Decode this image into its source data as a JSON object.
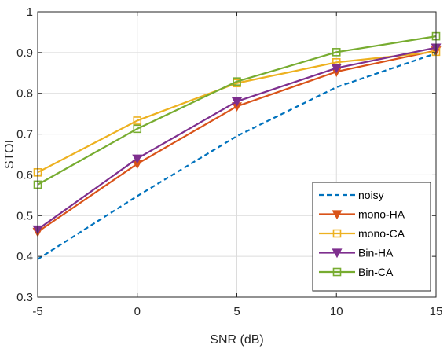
{
  "chart_data": {
    "type": "line",
    "xlabel": "SNR (dB)",
    "ylabel": "STOI",
    "xlim": [
      -5,
      15
    ],
    "ylim": [
      0.3,
      1
    ],
    "grid": true,
    "legend_position": "bottom-right",
    "x_ticks": [
      "-5",
      "0",
      "5",
      "10",
      "15"
    ],
    "y_ticks": [
      "0.3",
      "0.4",
      "0.5",
      "0.6",
      "0.7",
      "0.8",
      "0.9",
      "1"
    ],
    "x": [
      -5,
      0,
      5,
      10,
      15
    ],
    "series": [
      {
        "name": "noisy",
        "values": [
          0.393,
          0.548,
          0.695,
          0.815,
          0.898
        ],
        "color": "#0072BD",
        "line": "dashed",
        "marker": "none"
      },
      {
        "name": "mono-HA",
        "values": [
          0.46,
          0.627,
          0.768,
          0.853,
          0.905
        ],
        "color": "#D95319",
        "line": "solid",
        "marker": "triangle-down"
      },
      {
        "name": "mono-CA",
        "values": [
          0.606,
          0.733,
          0.825,
          0.876,
          0.902
        ],
        "color": "#EDB120",
        "line": "solid",
        "marker": "square"
      },
      {
        "name": "Bin-HA",
        "values": [
          0.466,
          0.64,
          0.78,
          0.862,
          0.912
        ],
        "color": "#7E2F8E",
        "line": "solid",
        "marker": "triangle-down"
      },
      {
        "name": "Bin-CA",
        "values": [
          0.576,
          0.713,
          0.829,
          0.901,
          0.94
        ],
        "color": "#77AC30",
        "line": "solid",
        "marker": "square"
      }
    ]
  }
}
